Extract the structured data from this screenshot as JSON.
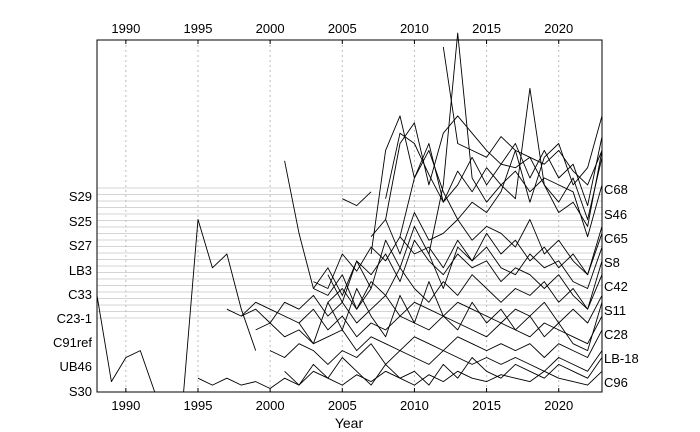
{
  "chart_data": {
    "type": "line",
    "xlabel": "Year",
    "ylabel": "",
    "title": "",
    "xlim": [
      1988,
      2023
    ],
    "x_ticks": [
      1990,
      1995,
      2000,
      2005,
      2010,
      2015,
      2020
    ],
    "grid": {
      "x": "dotted",
      "y": "solid-light"
    },
    "left_labels": [
      "S29",
      "S25",
      "S27",
      "LB3",
      "C33",
      "C23-1",
      "C91ref",
      "UB46",
      "S30"
    ],
    "right_labels": [
      "C68",
      "S46",
      "C65",
      "S8",
      "C42",
      "S11",
      "C28",
      "LB-18",
      "C96"
    ],
    "series": [
      {
        "x": [
          1988,
          1989,
          1990,
          1991,
          1992
        ],
        "y": [
          0.28,
          0.03,
          0.1,
          0.12,
          0.0
        ]
      },
      {
        "x": [
          1994,
          1995,
          1996,
          1997,
          1998,
          1999
        ],
        "y": [
          0.0,
          0.5,
          0.36,
          0.4,
          0.24,
          0.12
        ]
      },
      {
        "x": [
          2001,
          2002,
          2003,
          2004,
          2005,
          2006,
          2007
        ],
        "y": [
          0.67,
          0.46,
          0.3,
          0.28,
          0.34,
          0.24,
          0.3
        ]
      },
      {
        "x": [
          2005,
          2006,
          2007
        ],
        "y": [
          0.56,
          0.54,
          0.58
        ]
      },
      {
        "x": [
          2008,
          2009,
          2010,
          2011,
          2012,
          2013,
          2014,
          2015,
          2016,
          2017,
          2018,
          2019,
          2020,
          2021,
          2022,
          2023
        ],
        "y": [
          0.56,
          0.75,
          0.72,
          0.63,
          0.55,
          0.64,
          0.58,
          0.65,
          0.6,
          0.64,
          0.58,
          0.62,
          0.6,
          0.58,
          0.45,
          0.6
        ]
      },
      {
        "x": [
          2007,
          2008,
          2009,
          2010,
          2011,
          2012,
          2013,
          2014,
          2015,
          2016,
          2017,
          2018,
          2019,
          2020,
          2021,
          2022,
          2023
        ],
        "y": [
          0.4,
          0.7,
          0.8,
          0.62,
          0.72,
          0.55,
          0.6,
          0.68,
          0.6,
          0.66,
          0.65,
          0.68,
          0.6,
          0.55,
          0.62,
          0.5,
          0.68
        ]
      },
      {
        "x": [
          2012,
          2013,
          2014,
          2015,
          2016,
          2017,
          2018,
          2019,
          2020,
          2021,
          2022,
          2023
        ],
        "y": [
          1.0,
          0.72,
          0.7,
          0.68,
          0.74,
          0.7,
          0.68,
          0.66,
          0.7,
          0.64,
          0.6,
          0.7
        ]
      },
      {
        "x": [
          2011,
          2012,
          2013,
          2014,
          2015,
          2016,
          2017,
          2018,
          2019,
          2020,
          2021,
          2022,
          2023
        ],
        "y": [
          0.4,
          0.6,
          1.04,
          0.62,
          0.55,
          0.6,
          0.56,
          0.88,
          0.6,
          0.52,
          0.55,
          0.48,
          0.7
        ]
      },
      {
        "x": [
          2008,
          2009,
          2010,
          2011,
          2012,
          2013,
          2014,
          2015,
          2016,
          2017,
          2018,
          2019,
          2020,
          2021,
          2022,
          2023
        ],
        "y": [
          0.5,
          0.72,
          0.78,
          0.6,
          0.75,
          0.8,
          0.75,
          0.7,
          0.66,
          0.72,
          0.62,
          0.7,
          0.62,
          0.66,
          0.54,
          0.74
        ]
      },
      {
        "x": [
          2009,
          2010,
          2011,
          2012,
          2013,
          2014,
          2015,
          2016,
          2017,
          2018,
          2019,
          2020,
          2021,
          2022,
          2023
        ],
        "y": [
          0.45,
          0.62,
          0.7,
          0.58,
          0.5,
          0.55,
          0.52,
          0.58,
          0.7,
          0.55,
          0.68,
          0.72,
          0.6,
          0.65,
          0.8
        ]
      },
      {
        "x": [
          2007,
          2008,
          2009,
          2010,
          2011,
          2012,
          2013,
          2014,
          2015,
          2016,
          2017,
          2018,
          2019,
          2020,
          2021,
          2022,
          2023
        ],
        "y": [
          0.45,
          0.5,
          0.4,
          0.52,
          0.44,
          0.46,
          0.5,
          0.44,
          0.48,
          0.46,
          0.42,
          0.5,
          0.4,
          0.44,
          0.38,
          0.34,
          0.48
        ]
      },
      {
        "x": [
          2003,
          2004,
          2005,
          2006,
          2007,
          2008,
          2009,
          2010,
          2011,
          2012,
          2013,
          2014,
          2015,
          2016,
          2017,
          2018,
          2019,
          2020,
          2021,
          2022,
          2023
        ],
        "y": [
          0.32,
          0.3,
          0.4,
          0.35,
          0.42,
          0.38,
          0.45,
          0.4,
          0.42,
          0.36,
          0.44,
          0.38,
          0.42,
          0.36,
          0.34,
          0.4,
          0.36,
          0.38,
          0.32,
          0.3,
          0.42
        ]
      },
      {
        "x": [
          2003,
          2004,
          2005,
          2006,
          2007,
          2008,
          2009,
          2010,
          2011,
          2012,
          2013,
          2014,
          2015,
          2016,
          2017,
          2018,
          2019,
          2020,
          2021,
          2022,
          2023
        ],
        "y": [
          0.3,
          0.36,
          0.28,
          0.38,
          0.34,
          0.4,
          0.32,
          0.44,
          0.38,
          0.34,
          0.4,
          0.36,
          0.38,
          0.32,
          0.36,
          0.34,
          0.3,
          0.34,
          0.28,
          0.24,
          0.38
        ]
      },
      {
        "x": [
          2004,
          2005,
          2006,
          2007,
          2008,
          2009,
          2010,
          2011,
          2012,
          2013,
          2014,
          2015,
          2016,
          2017,
          2018,
          2019,
          2020,
          2021,
          2022,
          2023
        ],
        "y": [
          0.26,
          0.3,
          0.24,
          0.32,
          0.28,
          0.36,
          0.3,
          0.26,
          0.32,
          0.28,
          0.34,
          0.3,
          0.26,
          0.3,
          0.28,
          0.32,
          0.26,
          0.3,
          0.24,
          0.34
        ]
      },
      {
        "x": [
          1998,
          1999,
          2000,
          2001,
          2002,
          2003,
          2004,
          2005,
          2006,
          2007,
          2008,
          2009,
          2010,
          2011,
          2012,
          2013,
          2014,
          2015,
          2016,
          2017,
          2018,
          2019,
          2020,
          2021,
          2022,
          2023
        ],
        "y": [
          0.22,
          0.24,
          0.2,
          0.26,
          0.24,
          0.28,
          0.22,
          0.26,
          0.2,
          0.24,
          0.28,
          0.22,
          0.26,
          0.24,
          0.22,
          0.26,
          0.24,
          0.22,
          0.2,
          0.24,
          0.22,
          0.26,
          0.2,
          0.24,
          0.2,
          0.28
        ]
      },
      {
        "x": [
          1997,
          1998,
          1999,
          2000,
          2001,
          2002,
          2003,
          2004,
          2005,
          2006,
          2007,
          2008,
          2009,
          2010,
          2011,
          2012,
          2013,
          2014,
          2015,
          2016,
          2017,
          2018,
          2019,
          2020,
          2021,
          2022,
          2023
        ],
        "y": [
          0.24,
          0.22,
          0.26,
          0.24,
          0.22,
          0.2,
          0.24,
          0.18,
          0.22,
          0.16,
          0.2,
          0.18,
          0.22,
          0.2,
          0.18,
          0.22,
          0.2,
          0.18,
          0.16,
          0.2,
          0.18,
          0.16,
          0.2,
          0.18,
          0.16,
          0.14,
          0.22
        ]
      },
      {
        "x": [
          1999,
          2000,
          2001,
          2002,
          2003,
          2004,
          2005,
          2006,
          2007,
          2008,
          2009,
          2010,
          2011,
          2012,
          2013,
          2014,
          2015,
          2016,
          2017,
          2018,
          2019,
          2020,
          2021,
          2022,
          2023
        ],
        "y": [
          0.18,
          0.2,
          0.16,
          0.18,
          0.14,
          0.16,
          0.18,
          0.12,
          0.16,
          0.14,
          0.12,
          0.16,
          0.14,
          0.12,
          0.16,
          0.14,
          0.12,
          0.14,
          0.12,
          0.14,
          0.1,
          0.14,
          0.12,
          0.1,
          0.18
        ]
      },
      {
        "x": [
          2000,
          2001,
          2002,
          2003,
          2004,
          2005,
          2006,
          2007,
          2008,
          2009,
          2010,
          2011,
          2012,
          2013,
          2014,
          2015,
          2016,
          2017,
          2018,
          2019,
          2020,
          2021,
          2022,
          2023
        ],
        "y": [
          0.12,
          0.1,
          0.14,
          0.12,
          0.08,
          0.12,
          0.1,
          0.14,
          0.08,
          0.12,
          0.1,
          0.08,
          0.12,
          0.1,
          0.08,
          0.1,
          0.08,
          0.1,
          0.08,
          0.06,
          0.1,
          0.08,
          0.06,
          0.12
        ]
      },
      {
        "x": [
          1995,
          1996,
          1997,
          1998,
          1999,
          2000,
          2001,
          2002,
          2003,
          2004,
          2005,
          2006,
          2007,
          2008,
          2009,
          2010,
          2011,
          2012,
          2013,
          2014,
          2015,
          2016,
          2017,
          2018,
          2019,
          2020,
          2021,
          2022,
          2023
        ],
        "y": [
          0.04,
          0.02,
          0.04,
          0.02,
          0.03,
          0.01,
          0.04,
          0.02,
          0.06,
          0.04,
          0.02,
          0.05,
          0.03,
          0.06,
          0.04,
          0.02,
          0.05,
          0.03,
          0.06,
          0.04,
          0.03,
          0.05,
          0.04,
          0.03,
          0.06,
          0.04,
          0.03,
          0.02,
          0.06
        ]
      },
      {
        "x": [
          2001,
          2002,
          2003,
          2004,
          2005,
          2006,
          2007,
          2008,
          2009,
          2010,
          2011,
          2012,
          2013,
          2014,
          2015,
          2016,
          2017,
          2018,
          2019,
          2020,
          2021,
          2022,
          2023
        ],
        "y": [
          0.06,
          0.02,
          0.08,
          0.04,
          0.1,
          0.06,
          0.02,
          0.08,
          0.04,
          0.06,
          0.02,
          0.08,
          0.04,
          0.1,
          0.06,
          0.04,
          0.08,
          0.06,
          0.04,
          0.08,
          0.06,
          0.04,
          0.1
        ]
      },
      {
        "x": [
          2002,
          2003,
          2004,
          2005,
          2006,
          2007,
          2008,
          2009,
          2010,
          2011,
          2012,
          2013,
          2014,
          2015,
          2016,
          2017,
          2018,
          2019,
          2020,
          2021,
          2022,
          2023
        ],
        "y": [
          0.2,
          0.14,
          0.26,
          0.18,
          0.3,
          0.22,
          0.16,
          0.28,
          0.2,
          0.32,
          0.22,
          0.18,
          0.26,
          0.2,
          0.24,
          0.18,
          0.22,
          0.16,
          0.2,
          0.14,
          0.12,
          0.26
        ]
      },
      {
        "x": [
          2004,
          2005,
          2006,
          2007,
          2008,
          2009,
          2010,
          2011,
          2012,
          2013,
          2014,
          2015,
          2016,
          2017,
          2018,
          2019,
          2020,
          2021,
          2022,
          2023
        ],
        "y": [
          0.34,
          0.26,
          0.38,
          0.3,
          0.44,
          0.36,
          0.48,
          0.4,
          0.3,
          0.42,
          0.38,
          0.46,
          0.4,
          0.44,
          0.38,
          0.42,
          0.36,
          0.4,
          0.34,
          0.46
        ]
      }
    ]
  }
}
